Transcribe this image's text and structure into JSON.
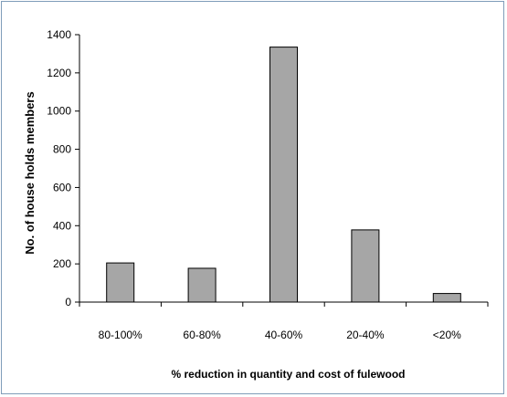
{
  "chart_data": {
    "type": "bar",
    "categories": [
      "80-100%",
      "60-80%",
      "40-60%",
      "20-40%",
      "<20%"
    ],
    "values": [
      205,
      177,
      1335,
      378,
      45
    ],
    "xlabel": "% reduction in  quantity and cost of fulewood",
    "ylabel": "No. of house holds members",
    "ylim": [
      0,
      1400
    ],
    "yticks": [
      0,
      200,
      400,
      600,
      800,
      1000,
      1200,
      1400
    ],
    "grid": false,
    "legend": "none",
    "colors": {
      "bar_fill": "#a6a6a6",
      "bar_stroke": "#000000",
      "axis": "#000000",
      "border": "#7f9db9"
    }
  }
}
